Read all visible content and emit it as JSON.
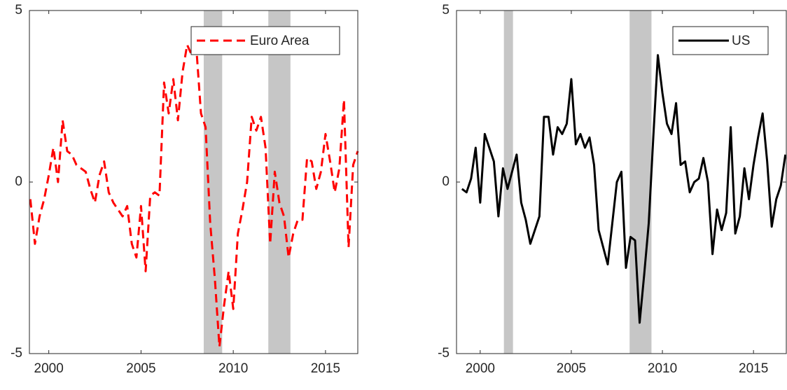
{
  "chart_data": [
    {
      "type": "line",
      "x": [
        1999,
        1999.25,
        1999.5,
        1999.75,
        2000,
        2000.25,
        2000.5,
        2000.75,
        2001,
        2001.25,
        2001.5,
        2001.75,
        2002,
        2002.25,
        2002.5,
        2002.75,
        2003,
        2003.25,
        2003.5,
        2003.75,
        2004,
        2004.25,
        2004.5,
        2004.75,
        2005,
        2005.25,
        2005.5,
        2005.75,
        2006,
        2006.25,
        2006.5,
        2006.75,
        2007,
        2007.25,
        2007.5,
        2007.75,
        2008,
        2008.25,
        2008.5,
        2008.75,
        2009,
        2009.25,
        2009.5,
        2009.75,
        2010,
        2010.25,
        2010.5,
        2010.75,
        2011,
        2011.25,
        2011.5,
        2011.75,
        2012,
        2012.25,
        2012.5,
        2012.75,
        2013,
        2013.25,
        2013.5,
        2013.75,
        2014,
        2014.25,
        2014.5,
        2014.75,
        2015,
        2015.25,
        2015.5,
        2015.75,
        2016,
        2016.25,
        2016.5,
        2016.75
      ],
      "series": [
        {
          "name": "Euro Area",
          "color": "#ff0000",
          "dashed": true,
          "values": [
            -0.5,
            -1.8,
            -1.0,
            -0.5,
            0.2,
            1.0,
            0.0,
            1.8,
            0.9,
            0.8,
            0.5,
            0.4,
            0.3,
            -0.2,
            -0.6,
            0.2,
            0.6,
            -0.3,
            -0.6,
            -0.8,
            -1.0,
            -0.7,
            -1.8,
            -2.2,
            -0.7,
            -2.6,
            -0.4,
            -0.3,
            -0.4,
            2.9,
            2.0,
            3.0,
            1.8,
            3.2,
            4.0,
            3.7,
            3.9,
            2.0,
            1.6,
            -1.2,
            -2.8,
            -4.8,
            -3.6,
            -2.6,
            -3.7,
            -1.5,
            -0.8,
            0.0,
            1.9,
            1.5,
            1.9,
            1.0,
            -1.8,
            0.3,
            -0.6,
            -1.0,
            -2.2,
            -1.5,
            -1.1,
            -1.1,
            0.7,
            0.6,
            -0.2,
            0.3,
            1.4,
            0.6,
            -0.3,
            0.4,
            2.4,
            -1.9,
            0.5,
            0.9
          ]
        }
      ],
      "shaded_periods": [
        [
          2008.4,
          2009.4
        ],
        [
          2011.9,
          2013.1
        ]
      ],
      "xlim": [
        1998.95,
        2016.75
      ],
      "xticks": [
        2000,
        2005,
        2010,
        2015
      ],
      "ylim": [
        -5,
        5
      ],
      "yticks": [
        -5,
        0,
        5
      ]
    },
    {
      "type": "line",
      "x": [
        1999,
        1999.25,
        1999.5,
        1999.75,
        2000,
        2000.25,
        2000.5,
        2000.75,
        2001,
        2001.25,
        2001.5,
        2001.75,
        2002,
        2002.25,
        2002.5,
        2002.75,
        2003,
        2003.25,
        2003.5,
        2003.75,
        2004,
        2004.25,
        2004.5,
        2004.75,
        2005,
        2005.25,
        2005.5,
        2005.75,
        2006,
        2006.25,
        2006.5,
        2006.75,
        2007,
        2007.25,
        2007.5,
        2007.75,
        2008,
        2008.25,
        2008.5,
        2008.75,
        2009,
        2009.25,
        2009.5,
        2009.75,
        2010,
        2010.25,
        2010.5,
        2010.75,
        2011,
        2011.25,
        2011.5,
        2011.75,
        2012,
        2012.25,
        2012.5,
        2012.75,
        2013,
        2013.25,
        2013.5,
        2013.75,
        2014,
        2014.25,
        2014.5,
        2014.75,
        2015,
        2015.25,
        2015.5,
        2015.75,
        2016,
        2016.25,
        2016.5,
        2016.75
      ],
      "series": [
        {
          "name": "US",
          "color": "#000000",
          "dashed": false,
          "values": [
            -0.2,
            -0.3,
            0.1,
            1.0,
            -0.6,
            1.4,
            1.0,
            0.6,
            -1.0,
            0.4,
            -0.2,
            0.3,
            0.8,
            -0.6,
            -1.1,
            -1.8,
            -1.4,
            -1.0,
            1.9,
            1.9,
            0.8,
            1.6,
            1.4,
            1.7,
            3.0,
            1.1,
            1.4,
            1.0,
            1.3,
            0.5,
            -1.4,
            -1.9,
            -2.4,
            -1.2,
            0.0,
            0.3,
            -2.5,
            -1.6,
            -1.7,
            -4.1,
            -2.7,
            -1.2,
            1.3,
            3.7,
            2.6,
            1.7,
            1.4,
            2.3,
            0.5,
            0.6,
            -0.3,
            0.0,
            0.1,
            0.7,
            0.0,
            -2.1,
            -0.8,
            -1.4,
            -0.9,
            1.6,
            -1.5,
            -1.0,
            0.4,
            -0.5,
            0.5,
            1.3,
            2.0,
            0.6,
            -1.3,
            -0.5,
            -0.1,
            0.8
          ]
        }
      ],
      "shaded_periods": [
        [
          2001.3,
          2001.8
        ],
        [
          2008.2,
          2009.4
        ]
      ],
      "xlim": [
        1998.7,
        2016.8
      ],
      "xticks": [
        2000,
        2005,
        2010,
        2015
      ],
      "ylim": [
        -5,
        5
      ],
      "yticks": [
        -5,
        0,
        5
      ]
    }
  ]
}
